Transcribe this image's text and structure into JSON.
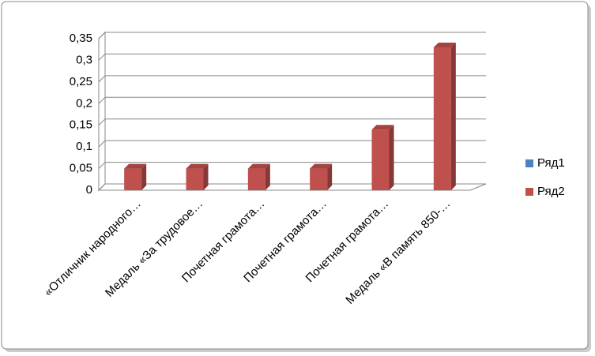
{
  "chart_data": {
    "type": "bar3d",
    "categories": [
      "«Отличник народного…",
      "Медаль «За трудовое…",
      "Почетная грамота…",
      "Почетная грамота…",
      "Почетная грамота…",
      "Медаль «В память 850-…"
    ],
    "series": [
      {
        "name": "Ряд1",
        "color": "#4f81bd",
        "values": [
          0,
          0,
          0,
          0,
          0,
          0
        ]
      },
      {
        "name": "Ряд2",
        "color": "#c0504d",
        "values": [
          0.05,
          0.05,
          0.05,
          0.05,
          0.14,
          0.33
        ]
      }
    ],
    "ylim": [
      0,
      0.35
    ],
    "yticks": [
      0,
      {
        "value": 0.05,
        "label": "0,05"
      },
      {
        "value": 0.1,
        "label": "0,1"
      },
      {
        "value": 0.15,
        "label": "0,15"
      },
      {
        "value": 0.2,
        "label": "0,2"
      },
      {
        "value": 0.25,
        "label": "0,25"
      },
      {
        "value": 0.3,
        "label": "0,3"
      },
      {
        "value": 0.35,
        "label": "0,35"
      }
    ],
    "grid": true,
    "legend": "right"
  }
}
